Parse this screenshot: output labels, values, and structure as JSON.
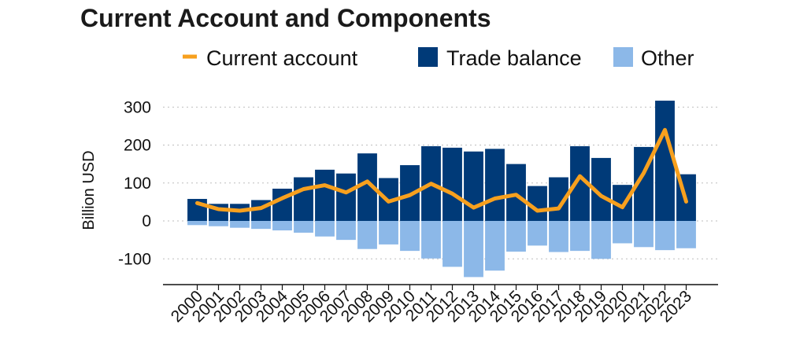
{
  "chart_data": {
    "type": "bar",
    "title": "Current Account and Components",
    "ylabel": "Billion USD",
    "xlabel": "",
    "ylim": [
      -170,
      330
    ],
    "yticks": [
      -100,
      0,
      100,
      200,
      300
    ],
    "grid": "horizontal dotted",
    "legend_position": "top",
    "categories": [
      "2000",
      "2001",
      "2002",
      "2003",
      "2004",
      "2005",
      "2006",
      "2007",
      "2008",
      "2009",
      "2010",
      "2011",
      "2012",
      "2013",
      "2014",
      "2015",
      "2016",
      "2017",
      "2018",
      "2019",
      "2020",
      "2021",
      "2022",
      "2023"
    ],
    "series": [
      {
        "name": "Trade balance",
        "type": "bar",
        "color": "#003a78",
        "values": [
          58,
          45,
          45,
          55,
          85,
          115,
          135,
          125,
          178,
          113,
          147,
          197,
          193,
          183,
          190,
          150,
          92,
          115,
          197,
          166,
          95,
          195,
          317,
          123
        ]
      },
      {
        "name": "Other",
        "type": "bar",
        "color": "#8cb8e8",
        "values": [
          -11,
          -14,
          -18,
          -21,
          -25,
          -31,
          -41,
          -50,
          -74,
          -62,
          -79,
          -99,
          -121,
          -148,
          -131,
          -81,
          -65,
          -82,
          -79,
          -100,
          -59,
          -69,
          -77,
          -72
        ]
      },
      {
        "name": "Current account",
        "type": "line",
        "color": "#f7a01e",
        "values": [
          47,
          31,
          27,
          34,
          60,
          84,
          94,
          75,
          104,
          51,
          68,
          98,
          72,
          35,
          59,
          69,
          27,
          33,
          118,
          66,
          36,
          126,
          240,
          51
        ]
      }
    ]
  }
}
